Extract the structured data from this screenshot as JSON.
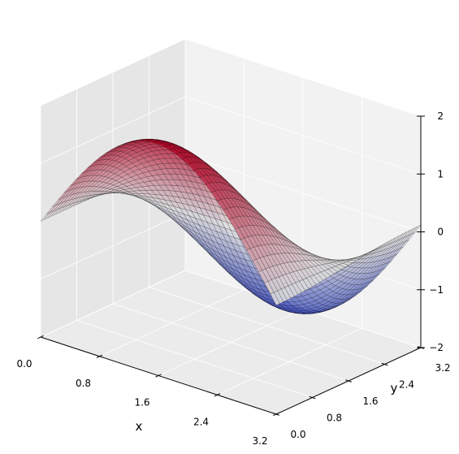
{
  "chart_data": {
    "type": "surface3d",
    "title": "",
    "xlabel": "x",
    "ylabel": "y",
    "zlabel": "",
    "function": "z = 2·sin(x)·cos(y)",
    "xlim": [
      0,
      3.2
    ],
    "ylim": [
      0,
      3.2
    ],
    "zlim": [
      -2,
      2
    ],
    "x_ticks": [
      "0.0",
      "0.8",
      "1.6",
      "2.4",
      "3.2"
    ],
    "y_ticks": [
      "0.0",
      "0.8",
      "1.6",
      "2.4",
      "3.2"
    ],
    "z_ticks": [
      "−2",
      "−1",
      "0",
      "1",
      "2"
    ],
    "grid_points": 40,
    "colormap": "coolwarm",
    "colors": {
      "low": "#3b4cc0",
      "mid": "#dddddd",
      "high": "#b40426",
      "pane_back": "#f2f2f2",
      "pane_side": "#e6e6e6",
      "pane_floor": "#ebebeb",
      "mesh_line": "#000000"
    },
    "surface_samples": [
      {
        "x": 1.6,
        "y": 0.0,
        "z": 2.0
      },
      {
        "x": 1.6,
        "y": 3.2,
        "z": -2.0
      },
      {
        "x": 0.0,
        "y": 1.6,
        "z": 0.0
      },
      {
        "x": 3.2,
        "y": 1.6,
        "z": 0.0
      }
    ]
  }
}
